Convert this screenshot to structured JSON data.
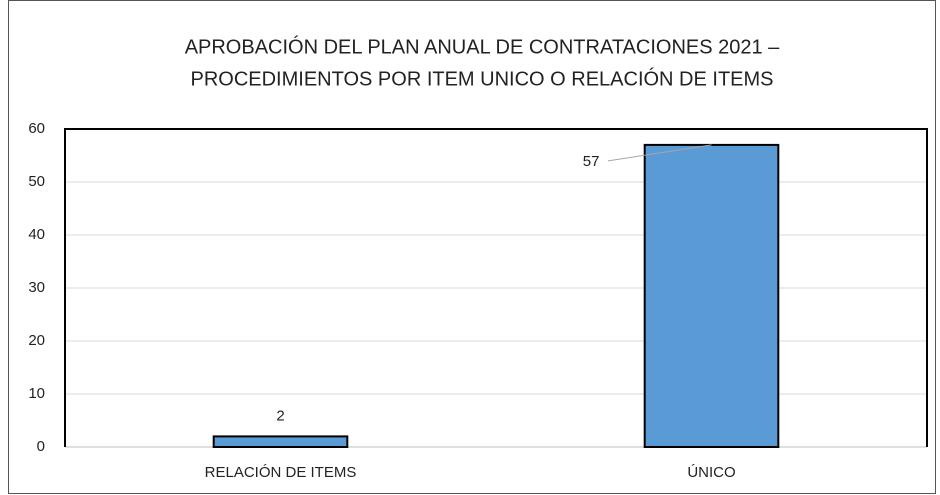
{
  "chart_data": {
    "type": "bar",
    "title": [
      "APROBACIÓN DEL PLAN ANUAL DE CONTRATACIONES 2021 –",
      "PROCEDIMIENTOS POR ITEM UNICO O RELACIÓN DE ITEMS"
    ],
    "categories": [
      "RELACIÓN DE ITEMS",
      "ÚNICO"
    ],
    "values": [
      2,
      57
    ],
    "color": "#5b9bd5",
    "ylim": [
      0,
      60
    ],
    "yticks": [
      0,
      10,
      20,
      30,
      40,
      50,
      60
    ],
    "grid": true
  }
}
